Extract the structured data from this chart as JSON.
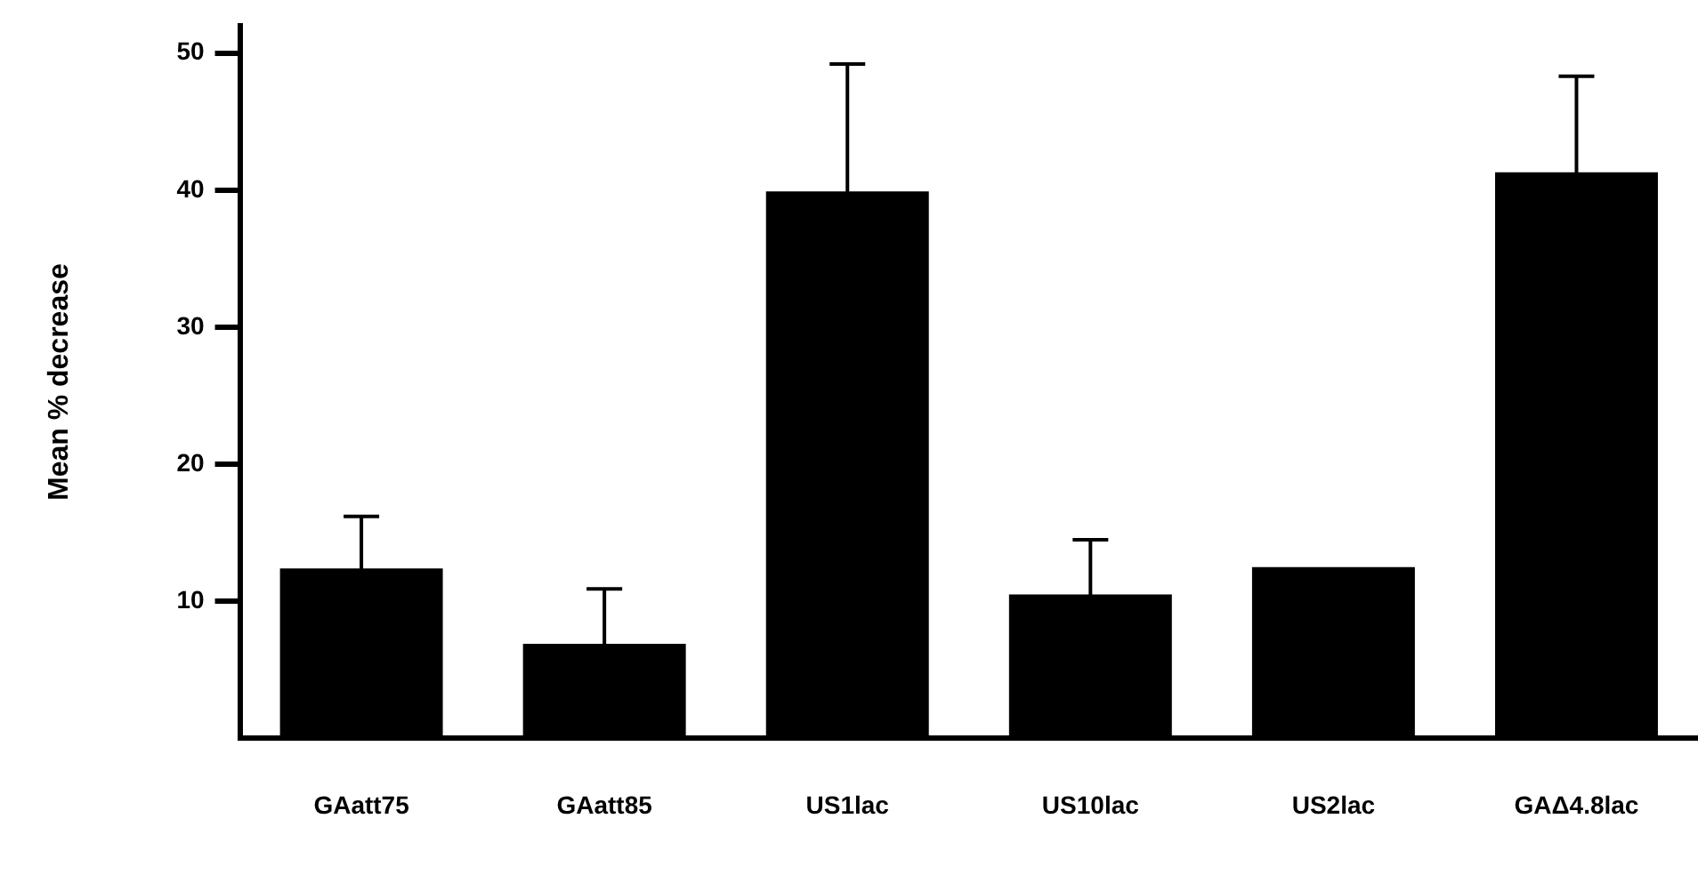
{
  "chart_data": {
    "type": "bar",
    "ylabel": "Mean % decrease",
    "categories": [
      "GAatt75",
      "GAatt85",
      "US1lac",
      "US10lac",
      "US2lac",
      "GAΔ4.8lac"
    ],
    "values": [
      12.4,
      6.9,
      39.9,
      10.5,
      12.5,
      41.3
    ],
    "errors": [
      3.8,
      4.0,
      9.3,
      4.0,
      null,
      7.0
    ],
    "color": "#000000",
    "ylim": [
      0,
      52
    ],
    "yticks": [
      10,
      20,
      30,
      40,
      50
    ]
  }
}
